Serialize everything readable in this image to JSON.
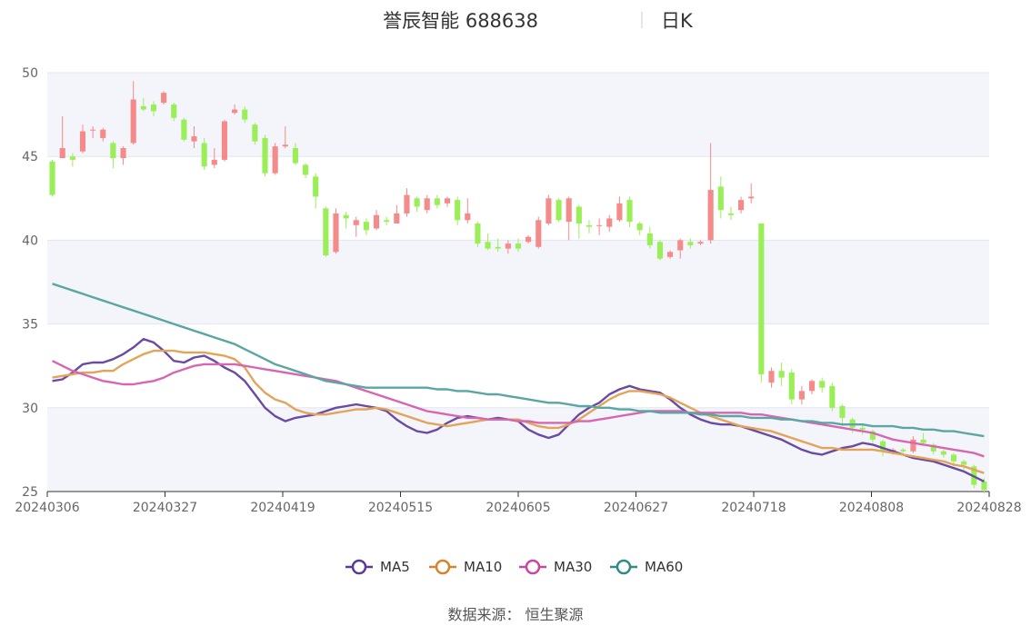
{
  "chart_data": {
    "type": "candlestick",
    "title": "誉辰智能 688638",
    "subtitle": "日K",
    "ylim": [
      25,
      50
    ],
    "yticks": [
      25,
      30,
      35,
      40,
      45,
      50
    ],
    "x_tick_labels": [
      "20240306",
      "20240327",
      "20240419",
      "20240515",
      "20240605",
      "20240627",
      "20240718",
      "20240808",
      "20240828"
    ],
    "colors": {
      "up": "#f48a8a",
      "down": "#9aef59",
      "MA5": "#6a4aa2",
      "MA10": "#e3a45a",
      "MA30": "#d766b0",
      "MA60": "#5aa6a2",
      "band": "#f4f5fb",
      "grid": "#e3e6f0"
    },
    "series": [
      {
        "name": "MA5",
        "values": [
          31.6,
          31.7,
          32.1,
          32.6,
          32.7,
          32.7,
          32.9,
          33.2,
          33.6,
          34.1,
          33.9,
          33.4,
          32.8,
          32.7,
          33.0,
          33.1,
          32.8,
          32.4,
          32.1,
          31.6,
          30.8,
          30.0,
          29.5,
          29.2,
          29.4,
          29.5,
          29.6,
          29.8,
          30.0,
          30.1,
          30.2,
          30.1,
          30.0,
          29.8,
          29.3,
          28.9,
          28.6,
          28.5,
          28.7,
          29.1,
          29.4,
          29.5,
          29.4,
          29.3,
          29.4,
          29.3,
          29.2,
          28.7,
          28.4,
          28.2,
          28.4,
          29.0,
          29.6,
          30.0,
          30.3,
          30.8,
          31.1,
          31.3,
          31.1,
          31.0,
          30.9,
          30.5,
          30.0,
          29.6,
          29.3,
          29.1,
          29.0,
          29.0,
          28.9,
          28.7,
          28.5,
          28.3,
          28.1,
          27.8,
          27.5,
          27.3,
          27.2,
          27.4,
          27.6,
          27.7,
          27.9,
          27.8,
          27.6,
          27.4,
          27.2,
          27.0,
          26.9,
          26.8,
          26.6,
          26.4,
          26.2,
          25.9,
          25.6
        ],
        "end_label": "MA5"
      },
      {
        "name": "MA10",
        "values": [
          31.8,
          31.9,
          32.0,
          32.1,
          32.1,
          32.2,
          32.2,
          32.6,
          32.9,
          33.2,
          33.4,
          33.4,
          33.4,
          33.3,
          33.3,
          33.3,
          33.2,
          33.1,
          32.9,
          32.4,
          31.5,
          30.9,
          30.5,
          30.3,
          29.9,
          29.7,
          29.6,
          29.6,
          29.7,
          29.8,
          29.9,
          29.9,
          30.0,
          29.9,
          29.7,
          29.5,
          29.3,
          29.1,
          29.0,
          28.9,
          29.0,
          29.1,
          29.2,
          29.3,
          29.3,
          29.3,
          29.3,
          29.1,
          28.9,
          28.8,
          28.8,
          29.0,
          29.3,
          29.7,
          30.1,
          30.5,
          30.8,
          31.0,
          31.0,
          30.9,
          30.8,
          30.6,
          30.3,
          30.0,
          29.7,
          29.5,
          29.3,
          29.1,
          28.9,
          28.8,
          28.7,
          28.6,
          28.4,
          28.2,
          28.0,
          27.8,
          27.6,
          27.6,
          27.5,
          27.5,
          27.5,
          27.5,
          27.4,
          27.3,
          27.2,
          27.1,
          27.0,
          26.9,
          26.8,
          26.6,
          26.5,
          26.3,
          26.1
        ]
      },
      {
        "name": "MA30",
        "values": [
          32.8,
          32.5,
          32.2,
          32.0,
          31.8,
          31.6,
          31.5,
          31.4,
          31.4,
          31.5,
          31.6,
          31.8,
          32.1,
          32.3,
          32.5,
          32.6,
          32.6,
          32.6,
          32.6,
          32.5,
          32.4,
          32.3,
          32.2,
          32.1,
          32.0,
          31.9,
          31.8,
          31.7,
          31.6,
          31.4,
          31.2,
          31.0,
          30.8,
          30.6,
          30.4,
          30.2,
          30.0,
          29.8,
          29.7,
          29.6,
          29.5,
          29.4,
          29.4,
          29.3,
          29.3,
          29.3,
          29.2,
          29.2,
          29.1,
          29.1,
          29.1,
          29.1,
          29.2,
          29.2,
          29.3,
          29.4,
          29.5,
          29.6,
          29.7,
          29.8,
          29.8,
          29.8,
          29.8,
          29.7,
          29.7,
          29.7,
          29.7,
          29.7,
          29.7,
          29.6,
          29.6,
          29.5,
          29.4,
          29.3,
          29.2,
          29.1,
          29.0,
          28.9,
          28.8,
          28.7,
          28.6,
          28.5,
          28.3,
          28.1,
          28.0,
          27.9,
          27.8,
          27.7,
          27.6,
          27.5,
          27.4,
          27.3,
          27.1
        ]
      },
      {
        "name": "MA60",
        "values": [
          37.4,
          37.2,
          37.0,
          36.8,
          36.6,
          36.4,
          36.2,
          36.0,
          35.8,
          35.6,
          35.4,
          35.2,
          35.0,
          34.8,
          34.6,
          34.4,
          34.2,
          34.0,
          33.8,
          33.5,
          33.2,
          32.9,
          32.6,
          32.4,
          32.2,
          32.0,
          31.8,
          31.6,
          31.5,
          31.4,
          31.3,
          31.2,
          31.2,
          31.2,
          31.2,
          31.2,
          31.2,
          31.2,
          31.1,
          31.1,
          31.0,
          31.0,
          30.9,
          30.8,
          30.8,
          30.7,
          30.6,
          30.5,
          30.4,
          30.3,
          30.3,
          30.2,
          30.1,
          30.1,
          30.0,
          30.0,
          29.9,
          29.9,
          29.8,
          29.8,
          29.7,
          29.7,
          29.7,
          29.7,
          29.6,
          29.6,
          29.5,
          29.5,
          29.5,
          29.4,
          29.4,
          29.4,
          29.3,
          29.3,
          29.2,
          29.2,
          29.1,
          29.1,
          29.0,
          29.0,
          29.0,
          28.9,
          28.9,
          28.9,
          28.8,
          28.8,
          28.7,
          28.7,
          28.6,
          28.6,
          28.5,
          28.4,
          28.3
        ]
      }
    ],
    "candles": [
      [
        44.7,
        42.7,
        44.8,
        42.6
      ],
      [
        44.9,
        45.5,
        47.4,
        44.9
      ],
      [
        45.0,
        44.8,
        45.2,
        44.4
      ],
      [
        45.3,
        46.5,
        46.9,
        45.2
      ],
      [
        46.6,
        46.6,
        46.8,
        46.1
      ],
      [
        46.1,
        46.6,
        46.7,
        45.9
      ],
      [
        45.8,
        44.9,
        45.9,
        44.3
      ],
      [
        44.9,
        45.5,
        45.6,
        44.5
      ],
      [
        45.8,
        48.4,
        49.5,
        45.7
      ],
      [
        48.0,
        47.8,
        48.5,
        47.7
      ],
      [
        48.1,
        47.7,
        48.3,
        47.4
      ],
      [
        48.2,
        48.8,
        48.9,
        48.1
      ],
      [
        48.1,
        47.3,
        48.2,
        47.1
      ],
      [
        47.2,
        46.0,
        47.3,
        45.9
      ],
      [
        45.9,
        46.2,
        46.8,
        45.5
      ],
      [
        45.8,
        44.4,
        46.1,
        44.2
      ],
      [
        44.5,
        44.8,
        45.5,
        44.3
      ],
      [
        44.8,
        47.1,
        47.2,
        44.7
      ],
      [
        47.6,
        47.8,
        48.1,
        47.5
      ],
      [
        47.8,
        47.2,
        48.0,
        47.0
      ],
      [
        46.9,
        45.9,
        47.0,
        45.7
      ],
      [
        46.1,
        44.0,
        46.3,
        43.8
      ],
      [
        44.0,
        45.6,
        45.8,
        43.9
      ],
      [
        45.6,
        45.7,
        46.8,
        45.5
      ],
      [
        45.5,
        44.6,
        45.8,
        44.5
      ],
      [
        44.5,
        43.9,
        44.6,
        43.7
      ],
      [
        43.8,
        42.6,
        44.0,
        41.9
      ],
      [
        41.9,
        39.1,
        42.0,
        39.0
      ],
      [
        39.3,
        41.6,
        41.9,
        39.2
      ],
      [
        41.5,
        41.3,
        41.7,
        40.7
      ],
      [
        40.9,
        41.2,
        41.4,
        40.2
      ],
      [
        41.1,
        40.6,
        41.3,
        40.3
      ],
      [
        40.7,
        41.5,
        41.8,
        40.6
      ],
      [
        41.2,
        41.1,
        41.4,
        40.9
      ],
      [
        41.0,
        41.6,
        42.1,
        41.0
      ],
      [
        41.6,
        42.7,
        43.1,
        41.4
      ],
      [
        42.5,
        42.0,
        42.6,
        41.7
      ],
      [
        41.8,
        42.5,
        42.7,
        41.6
      ],
      [
        42.5,
        42.1,
        42.7,
        41.9
      ],
      [
        42.2,
        42.5,
        42.6,
        42.0
      ],
      [
        42.4,
        41.2,
        42.6,
        40.9
      ],
      [
        41.2,
        41.6,
        42.5,
        41.0
      ],
      [
        41.0,
        39.8,
        41.1,
        39.6
      ],
      [
        39.9,
        39.5,
        40.4,
        39.4
      ],
      [
        39.6,
        39.5,
        40.1,
        39.3
      ],
      [
        39.5,
        39.8,
        40.0,
        39.2
      ],
      [
        39.8,
        39.5,
        40.1,
        39.3
      ],
      [
        39.9,
        40.2,
        40.3,
        39.8
      ],
      [
        39.6,
        41.2,
        41.4,
        39.5
      ],
      [
        41.0,
        42.5,
        42.7,
        40.9
      ],
      [
        42.4,
        41.2,
        42.5,
        41.1
      ],
      [
        41.1,
        42.5,
        42.6,
        40.0
      ],
      [
        42.0,
        41.0,
        42.1,
        40.1
      ],
      [
        40.9,
        40.8,
        41.2,
        40.4
      ],
      [
        40.9,
        40.9,
        41.3,
        40.3
      ],
      [
        40.8,
        41.3,
        41.5,
        40.5
      ],
      [
        41.2,
        42.2,
        42.6,
        41.1
      ],
      [
        42.4,
        41.1,
        42.6,
        40.8
      ],
      [
        41.0,
        40.6,
        41.1,
        40.3
      ],
      [
        40.4,
        39.7,
        40.8,
        39.5
      ],
      [
        39.9,
        38.9,
        40.0,
        38.8
      ],
      [
        39.0,
        39.3,
        39.4,
        38.9
      ],
      [
        39.4,
        40.0,
        40.1,
        38.9
      ],
      [
        39.9,
        39.7,
        40.1,
        39.5
      ],
      [
        39.8,
        39.9,
        40.0,
        39.7
      ],
      [
        40.0,
        43.0,
        45.8,
        39.8
      ],
      [
        43.2,
        41.8,
        43.8,
        41.3
      ],
      [
        41.6,
        41.5,
        42.0,
        41.2
      ],
      [
        41.8,
        42.4,
        42.6,
        41.6
      ],
      [
        42.5,
        42.6,
        43.4,
        42.2
      ],
      [
        41.0,
        32.0,
        33.2,
        31.5
      ],
      [
        31.5,
        32.2,
        32.4,
        31.2
      ],
      [
        32.2,
        31.8,
        32.7,
        31.3
      ],
      [
        32.1,
        30.5,
        32.3,
        30.2
      ],
      [
        30.5,
        31.0,
        31.3,
        30.2
      ],
      [
        31.0,
        31.6,
        31.7,
        30.8
      ],
      [
        31.6,
        31.2,
        31.8,
        30.9
      ],
      [
        31.3,
        30.0,
        31.5,
        29.8
      ],
      [
        30.1,
        29.4,
        30.2,
        28.9
      ],
      [
        29.3,
        28.8,
        29.4,
        28.5
      ],
      [
        28.8,
        28.7,
        29.0,
        28.4
      ],
      [
        28.6,
        28.1,
        28.7,
        27.9
      ],
      [
        28.0,
        27.4,
        28.1,
        27.1
      ],
      [
        27.4,
        27.5,
        27.6,
        27.2
      ],
      [
        27.5,
        27.4,
        27.6,
        27.3
      ],
      [
        27.4,
        28.1,
        28.3,
        27.3
      ],
      [
        28.1,
        27.9,
        28.5,
        27.8
      ],
      [
        27.8,
        27.4,
        27.9,
        27.2
      ],
      [
        27.4,
        27.2,
        27.5,
        27.0
      ],
      [
        27.2,
        26.8,
        27.3,
        26.5
      ],
      [
        26.8,
        26.6,
        26.9,
        26.3
      ],
      [
        26.5,
        25.4,
        26.6,
        25.2
      ],
      [
        25.6,
        25.1,
        25.8,
        24.9
      ]
    ]
  },
  "legend": [
    {
      "name": "MA5",
      "color": "#5b3a94"
    },
    {
      "name": "MA10",
      "color": "#d9822b"
    },
    {
      "name": "MA30",
      "color": "#c9479f"
    },
    {
      "name": "MA60",
      "color": "#2e8b88"
    }
  ],
  "source": "数据来源：  恒生聚源"
}
